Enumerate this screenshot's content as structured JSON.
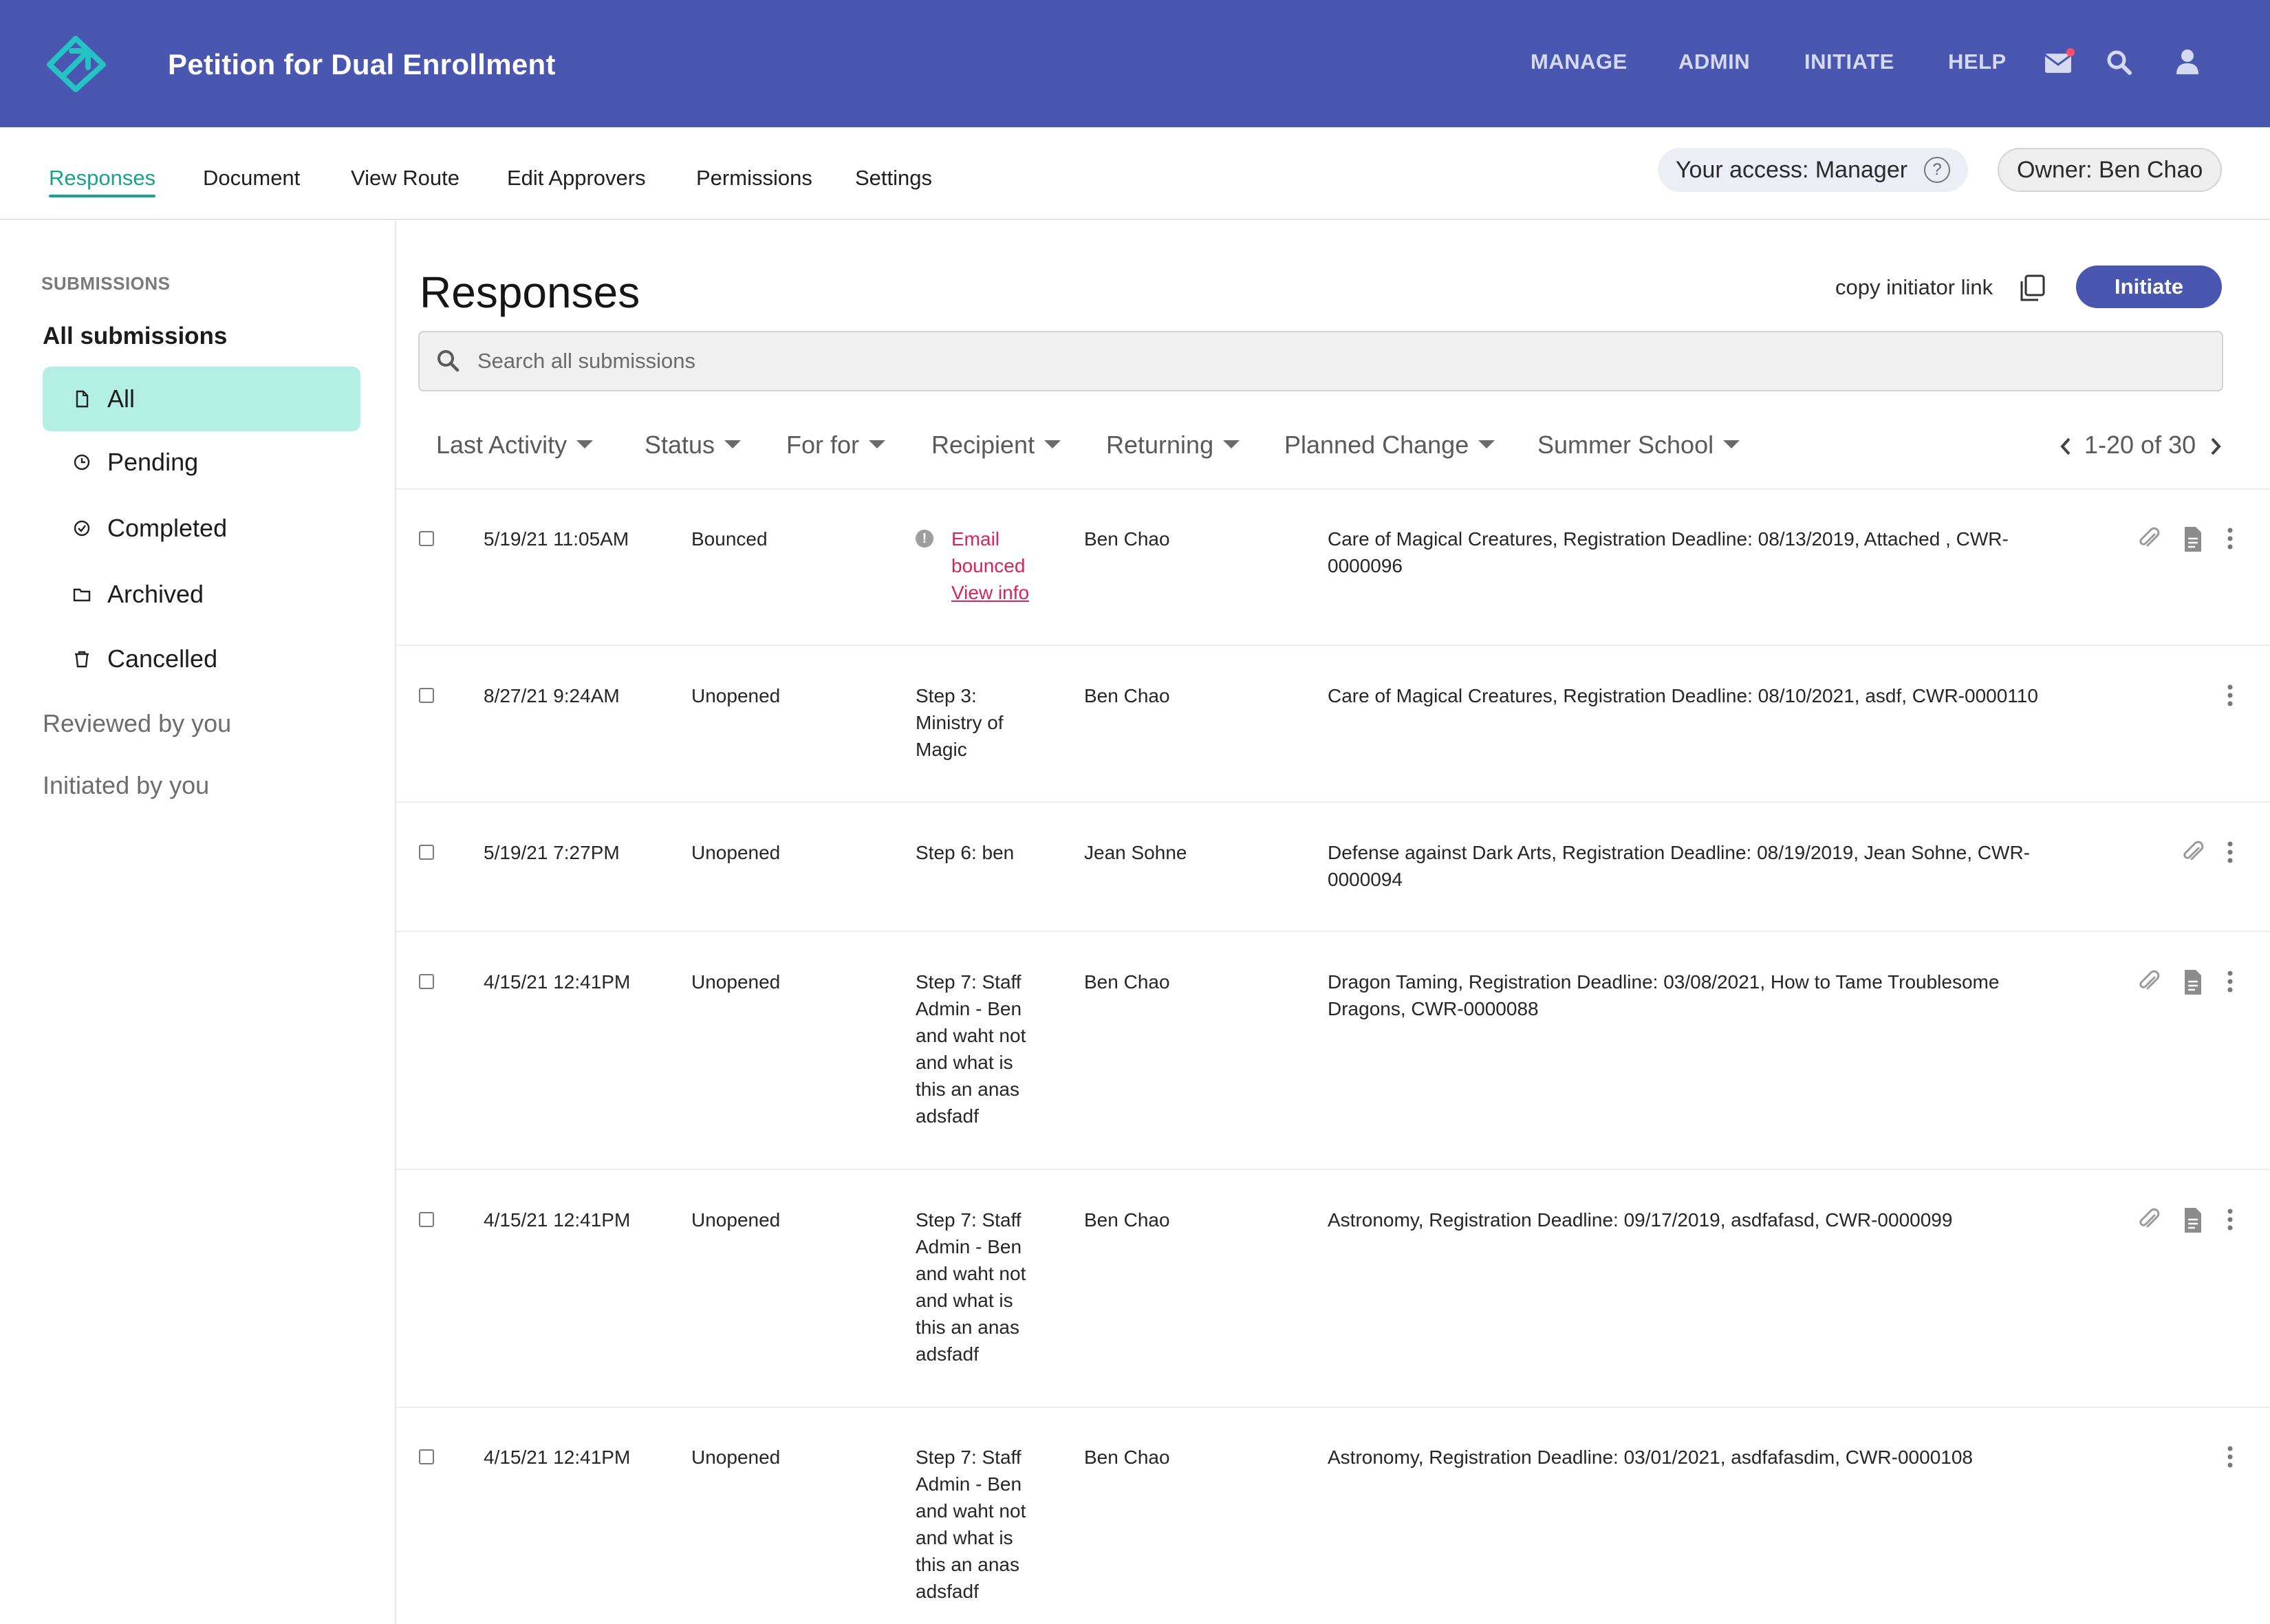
{
  "header": {
    "title": "Petition for Dual Enrollment",
    "nav": [
      "MANAGE",
      "ADMIN",
      "INITIATE",
      "HELP"
    ],
    "icons": [
      "mail-icon",
      "search-icon",
      "user-icon"
    ],
    "brand_color": "#4957b1",
    "notification_dot_color": "#ff4d6d"
  },
  "tabs": [
    "Responses",
    "Document",
    "View Route",
    "Edit Approvers",
    "Permissions",
    "Settings"
  ],
  "active_tab": "Responses",
  "access": {
    "label": "Your access: Manager",
    "help": "?"
  },
  "owner": {
    "label": "Owner: Ben Chao"
  },
  "sidebar": {
    "heading": "SUBMISSIONS",
    "group_title": "All submissions",
    "items": [
      {
        "label": "All",
        "icon": "file-icon",
        "active": true
      },
      {
        "label": "Pending",
        "icon": "clock-icon",
        "active": false
      },
      {
        "label": "Completed",
        "icon": "check-circle-icon",
        "active": false
      },
      {
        "label": "Archived",
        "icon": "folder-icon",
        "active": false
      },
      {
        "label": "Cancelled",
        "icon": "trash-icon",
        "active": false
      }
    ],
    "links": [
      "Reviewed by you",
      "Initiated by you"
    ],
    "active_color": "#b3f0e3"
  },
  "main": {
    "title": "Responses",
    "copy_link_label": "copy initiator link",
    "initiate_label": "Initiate",
    "search_placeholder": "Search all submissions",
    "filters": [
      "Last Activity",
      "Status",
      "For for",
      "Recipient",
      "Returning",
      "Planned Change",
      "Summer School"
    ],
    "pagination": "1-20 of 30"
  },
  "rows": [
    {
      "date": "5/19/21 11:05AM",
      "status": "Bounced",
      "step": null,
      "bounce": {
        "line1": "Email",
        "line2": "bounced",
        "link": "View info"
      },
      "recipient": "Ben Chao",
      "description": "Care of Magical Creatures, Registration Deadline: 08/13/2019, Attached , CWR-0000096",
      "attachment": true,
      "document": true
    },
    {
      "date": "8/27/21 9:24AM",
      "status": "Unopened",
      "step": "Step 3: Ministry of Magic",
      "bounce": null,
      "recipient": "Ben Chao",
      "description": "Care of Magical Creatures, Registration Deadline: 08/10/2021, asdf, CWR-0000110",
      "attachment": false,
      "document": false
    },
    {
      "date": "5/19/21 7:27PM",
      "status": "Unopened",
      "step": "Step 6: ben",
      "bounce": null,
      "recipient": "Jean Sohne",
      "description": "Defense against Dark Arts, Registration Deadline: 08/19/2019, Jean Sohne, CWR-0000094",
      "attachment": true,
      "document": false
    },
    {
      "date": "4/15/21 12:41PM",
      "status": "Unopened",
      "step": "Step 7: Staff Admin - Ben and waht not and what is this an anas adsfadf",
      "bounce": null,
      "recipient": "Ben Chao",
      "description": "Dragon Taming, Registration Deadline: 03/08/2021, How to Tame Troublesome Dragons, CWR-0000088",
      "attachment": true,
      "document": true
    },
    {
      "date": "4/15/21 12:41PM",
      "status": "Unopened",
      "step": "Step 7: Staff Admin - Ben and waht not and what is this an anas adsfadf",
      "bounce": null,
      "recipient": "Ben Chao",
      "description": "Astronomy, Registration Deadline: 09/17/2019, asdfafasd, CWR-0000099",
      "attachment": true,
      "document": true
    },
    {
      "date": "4/15/21 12:41PM",
      "status": "Unopened",
      "step": "Step 7: Staff Admin - Ben and waht not and what is this an anas adsfadf",
      "bounce": null,
      "recipient": "Ben Chao",
      "description": "Astronomy, Registration Deadline: 03/01/2021, asdfafasdim, CWR-0000108",
      "attachment": false,
      "document": false
    }
  ]
}
